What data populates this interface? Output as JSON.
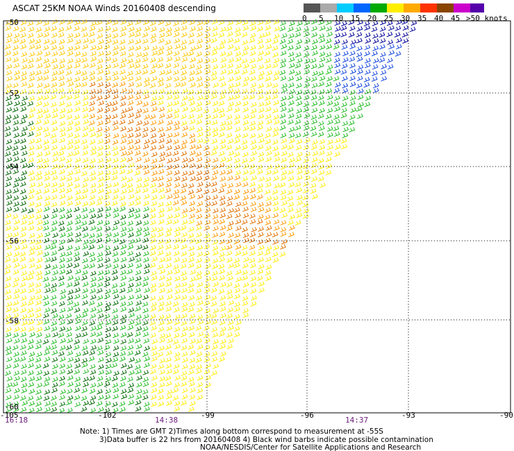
{
  "title": "ASCAT 25KM NOAA Winds 20160408 descending",
  "legend": {
    "labels": [
      "0",
      "5",
      "10",
      "15",
      "20",
      "25",
      "30",
      "35",
      "40",
      "45",
      ">50 knots"
    ],
    "colors": [
      "#555555",
      "#aaaaaa",
      "#00ccff",
      "#0066ff",
      "#00aa00",
      "#ffee00",
      "#ffaa00",
      "#ff3300",
      "#884400",
      "#cc00cc",
      "#5500aa"
    ]
  },
  "axes": {
    "lat_labels": [
      "-50",
      "-52",
      "-54",
      "-56",
      "-58",
      "-60"
    ],
    "lon_labels": [
      "-105",
      "-102",
      "-99",
      "-96",
      "-93",
      "-90"
    ]
  },
  "times": [
    "16:18",
    "14:38",
    "14:37"
  ],
  "notes": {
    "line1": "Note: 1) Times are GMT 2)Times along bottom correspond to measurement at -55S",
    "line2": "3)Data buffer is 22 hrs from 20160408 4) Black wind barbs indicate possible contamination",
    "line3": "NOAA/NESDIS/Center for Satellite Applications and Research"
  }
}
